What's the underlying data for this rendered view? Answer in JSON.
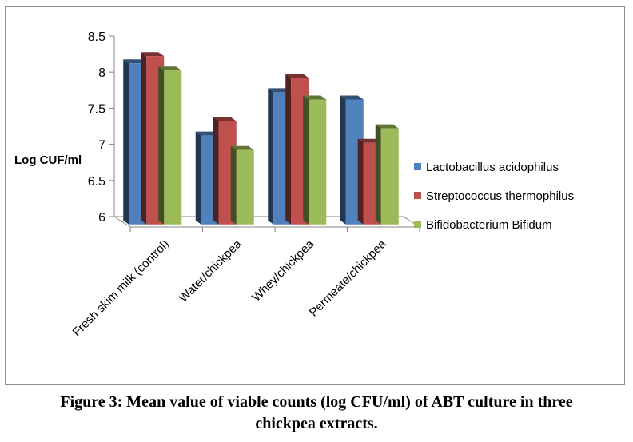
{
  "chart_data": {
    "type": "bar",
    "title": "",
    "xlabel": "",
    "ylabel": "Log CUF/ml",
    "ylim": [
      6,
      8.5
    ],
    "yticks": [
      "6",
      "6.5",
      "7",
      "7.5",
      "8",
      "8.5"
    ],
    "grid": false,
    "legend_position": "right",
    "categories": [
      "Fresh skim milk (control)",
      "Water/chickpea",
      "Whey/chickpea",
      "Permeate/chickpea"
    ],
    "series": [
      {
        "name": "Lactobacillus acidophilus",
        "color": "#4f81bd",
        "values": [
          8.2,
          7.2,
          7.8,
          7.7
        ]
      },
      {
        "name": "Streptococcus thermophilus",
        "color": "#c0504d",
        "values": [
          8.3,
          7.4,
          8.0,
          7.1
        ]
      },
      {
        "name": "Bifidobacterium Bifidum",
        "color": "#9bbb59",
        "values": [
          8.1,
          7.0,
          7.7,
          7.3
        ]
      }
    ]
  },
  "caption": {
    "line1": "Figure 3: Mean value of viable counts (log CFU/ml) of ABT culture in three",
    "line2": "chickpea extracts."
  }
}
